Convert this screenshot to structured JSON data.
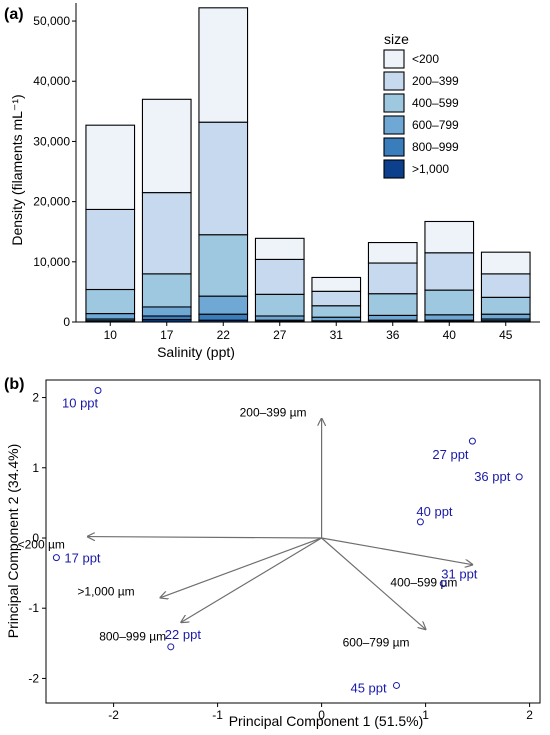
{
  "panel_a": {
    "label": "(a)",
    "ylabel": "Density (filaments mL⁻¹)",
    "xlabel": "Salinity (ppt)",
    "legend_title": "size",
    "y_tick_labels": [
      "0",
      "10,000",
      "20,000",
      "30,000",
      "40,000",
      "50,000"
    ]
  },
  "panel_b": {
    "label": "(b)",
    "xlabel": "Principal Component 1 (51.5%)",
    "ylabel": "Principal Component 2 (34.4%)",
    "x_tick_labels": [
      "-2",
      "-1",
      "0",
      "1",
      "2"
    ],
    "y_tick_labels": [
      "-2",
      "-1",
      "0",
      "1",
      "2"
    ]
  },
  "chart_data": [
    {
      "type": "bar",
      "stacked": true,
      "title": "",
      "xlabel": "Salinity (ppt)",
      "ylabel": "Density (filaments mL⁻¹)",
      "ylim": [
        0,
        53000
      ],
      "y_ticks": [
        0,
        10000,
        20000,
        30000,
        40000,
        50000
      ],
      "categories": [
        "10",
        "17",
        "22",
        "27",
        "31",
        "36",
        "40",
        "45"
      ],
      "legend": {
        "title": "size",
        "position": "top-right"
      },
      "series": [
        {
          "name": "<200",
          "color": "#eef3fa",
          "values": [
            14000,
            15500,
            19000,
            3500,
            2300,
            3400,
            5200,
            3600
          ]
        },
        {
          "name": "200–399",
          "color": "#c6d9ee",
          "values": [
            13300,
            13500,
            18700,
            5800,
            2400,
            5100,
            6200,
            3900
          ]
        },
        {
          "name": "400–599",
          "color": "#9ec8e0",
          "values": [
            4000,
            5500,
            10200,
            3600,
            1900,
            3600,
            4100,
            2800
          ]
        },
        {
          "name": "600–799",
          "color": "#6fa8d4",
          "values": [
            900,
            1500,
            3000,
            700,
            600,
            800,
            900,
            800
          ]
        },
        {
          "name": "800–999",
          "color": "#3a7dbd",
          "values": [
            300,
            600,
            1000,
            200,
            100,
            200,
            200,
            300
          ]
        },
        {
          "name": ">1,000",
          "color": "#0c3f8c",
          "values": [
            200,
            400,
            300,
            100,
            100,
            100,
            100,
            200
          ]
        }
      ]
    },
    {
      "type": "scatter",
      "subtype": "biplot",
      "title": "",
      "xlabel": "Principal Component 1 (51.5%)",
      "ylabel": "Principal Component 2 (34.4%)",
      "xlim": [
        -2.65,
        2.1
      ],
      "ylim": [
        -2.35,
        2.25
      ],
      "x_ticks": [
        -2,
        -1,
        0,
        1,
        2
      ],
      "y_ticks": [
        -2,
        -1,
        0,
        1,
        2
      ],
      "points": [
        {
          "label": "10 ppt",
          "x": -2.15,
          "y": 2.1
        },
        {
          "label": "17 ppt",
          "x": -2.55,
          "y": -0.28
        },
        {
          "label": "22 ppt",
          "x": -1.45,
          "y": -1.55
        },
        {
          "label": "27 ppt",
          "x": 1.45,
          "y": 1.38
        },
        {
          "label": "36 ppt",
          "x": 1.9,
          "y": 0.87
        },
        {
          "label": "40 ppt",
          "x": 0.95,
          "y": 0.23
        },
        {
          "label": "31 ppt",
          "x": 1.17,
          "y": -0.65
        },
        {
          "label": "45 ppt",
          "x": 0.72,
          "y": -2.1
        }
      ],
      "loadings": [
        {
          "label": "200–399 µm",
          "x": 0.0,
          "y": 1.7
        },
        {
          "label": "<200 µm",
          "x": -2.25,
          "y": 0.02
        },
        {
          "label": "400–599 µm",
          "x": 1.45,
          "y": -0.38
        },
        {
          "label": ">1,000 µm",
          "x": -1.55,
          "y": -0.85
        },
        {
          "label": "800–999 µm",
          "x": -1.35,
          "y": -1.2
        },
        {
          "label": "600–799 µm",
          "x": 1.0,
          "y": -1.3
        }
      ],
      "colors": {
        "points": "#1a1aa8",
        "arrows": "#6e6e6e"
      }
    }
  ]
}
